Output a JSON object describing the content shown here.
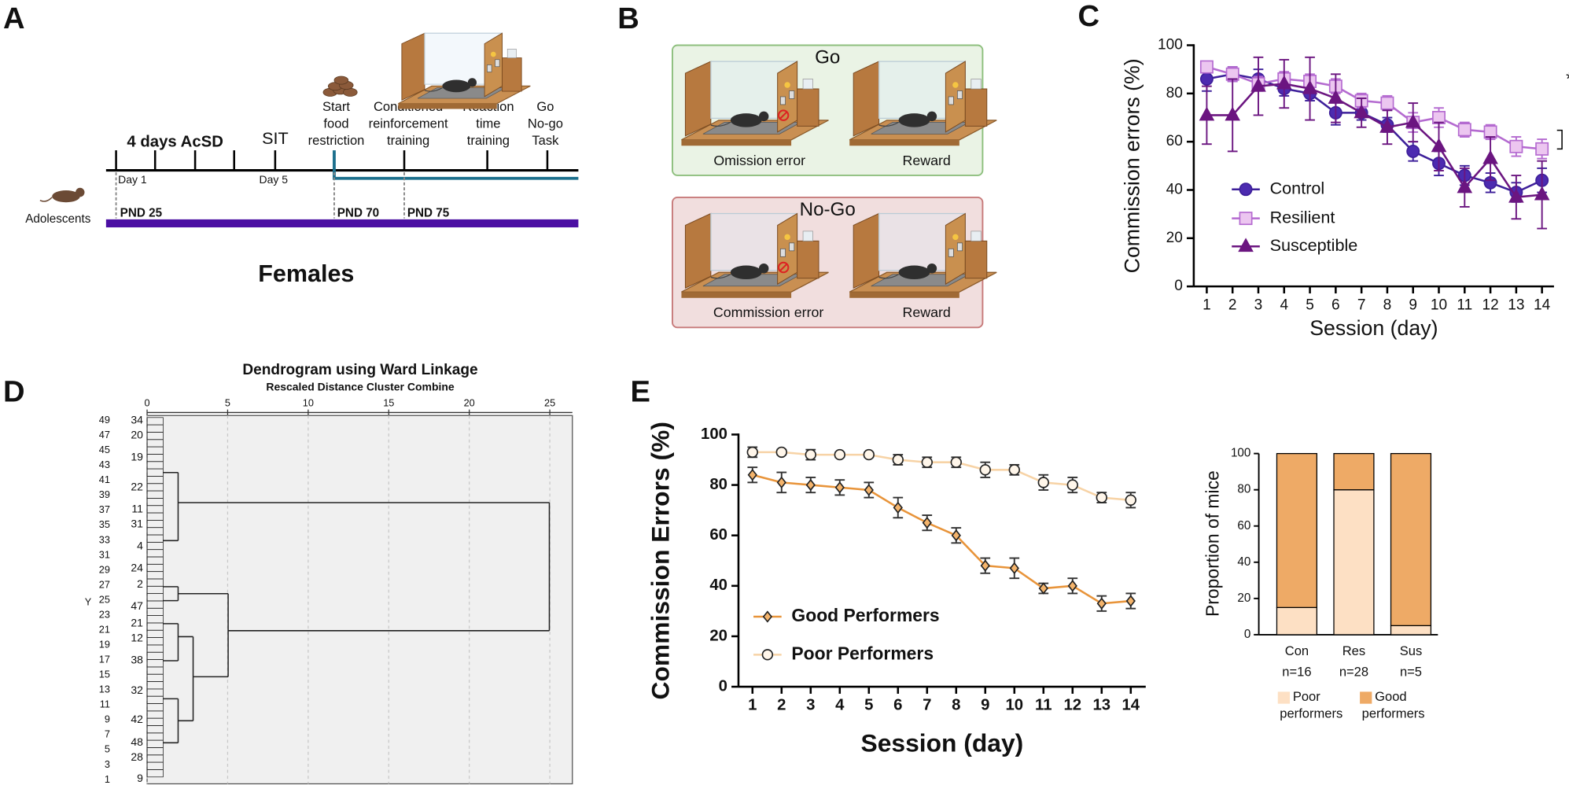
{
  "panel_labels": [
    "A",
    "B",
    "C",
    "D",
    "E"
  ],
  "timeline": {
    "phases": [
      "4 days AcSD",
      "SIT"
    ],
    "days": [
      "Day 1",
      "Day 5"
    ],
    "subject": "Adolescents",
    "stages": [
      [
        "Start",
        "food",
        "restriction"
      ],
      [
        "Conditioned",
        "reinforcement",
        "training"
      ],
      [
        "Reaction",
        "time",
        "training"
      ],
      [
        "Go",
        "No-go",
        "Task"
      ]
    ],
    "pnd": [
      "PND 25",
      "PND 70",
      "PND 75"
    ],
    "sex": "Females"
  },
  "task": {
    "panels": [
      {
        "title": "Go",
        "captions": [
          "Omission error",
          "Reward"
        ]
      },
      {
        "title": "No-Go",
        "captions": [
          "Commission error",
          "Reward"
        ]
      }
    ]
  },
  "chart_data": [
    {
      "type": "line",
      "xlabel": "Session (day)",
      "ylabel": "Commission errors (%)",
      "categories": [
        "1",
        "2",
        "3",
        "4",
        "5",
        "6",
        "7",
        "8",
        "9",
        "10",
        "11",
        "12",
        "13",
        "14"
      ],
      "ylim": [
        0,
        100
      ],
      "yticks": [
        0,
        20,
        40,
        60,
        80,
        100
      ],
      "annotation": "*",
      "series": [
        {
          "name": "Control",
          "color": "#3d1f9a",
          "fill": "#4c2bb0",
          "marker": "circle",
          "values": [
            86,
            88,
            86,
            82,
            80,
            72,
            72,
            67,
            56,
            51,
            46,
            43,
            39,
            44
          ],
          "errors": [
            5,
            3,
            4,
            3,
            3,
            5,
            3,
            3,
            4,
            5,
            4,
            4,
            4,
            5
          ]
        },
        {
          "name": "Resilient",
          "color": "#b46ad0",
          "fill": "#ecc6f0",
          "marker": "square",
          "values": [
            91,
            88,
            84,
            86,
            85,
            83,
            77,
            76,
            68,
            70,
            65,
            64,
            58,
            57
          ],
          "errors": [
            2,
            3,
            3,
            3,
            3,
            3,
            3,
            3,
            4,
            4,
            3,
            3,
            4,
            4
          ]
        },
        {
          "name": "Susceptible",
          "color": "#6b1580",
          "fill": "#6b1580",
          "marker": "triangle",
          "values": [
            71,
            71,
            83,
            84,
            82,
            78,
            72,
            66,
            68,
            58,
            41,
            53,
            37,
            38
          ],
          "errors": [
            12,
            15,
            12,
            10,
            13,
            10,
            6,
            7,
            8,
            10,
            8,
            9,
            9,
            14
          ]
        }
      ]
    },
    {
      "type": "dendrogram",
      "title": "Dendrogram using Ward Linkage",
      "subtitle": "Rescaled Distance Cluster Combine",
      "ylabel": "Y",
      "xlim": [
        0,
        26.4
      ],
      "xticks": [
        0,
        5,
        10,
        15,
        20,
        25
      ],
      "row_labels": [
        "49",
        "47",
        "45",
        "43",
        "41",
        "39",
        "37",
        "35",
        "33",
        "31",
        "29",
        "27",
        "25",
        "23",
        "21",
        "19",
        "17",
        "15",
        "13",
        "11",
        "9",
        "7",
        "5",
        "3",
        "1"
      ],
      "case_labels": [
        "34",
        "20",
        "19",
        "22",
        "11",
        "31",
        "4",
        "24",
        "2",
        "47",
        "21",
        "12",
        "38",
        "32",
        "42",
        "48",
        "28",
        "9"
      ]
    },
    {
      "type": "line",
      "xlabel": "Session (day)",
      "ylabel": "Commission Errors (%)",
      "categories": [
        "1",
        "2",
        "3",
        "4",
        "5",
        "6",
        "7",
        "8",
        "9",
        "10",
        "11",
        "12",
        "13",
        "14"
      ],
      "ylim": [
        0,
        100
      ],
      "yticks": [
        0,
        20,
        40,
        60,
        80,
        100
      ],
      "series": [
        {
          "name": "Good Performers",
          "color": "#e8943a",
          "fill": "#f4b46c",
          "marker": "diamond",
          "values": [
            84,
            81,
            80,
            79,
            78,
            71,
            65,
            60,
            48,
            47,
            39,
            40,
            33,
            34
          ],
          "errors": [
            3,
            4,
            3,
            3,
            3,
            4,
            3,
            3,
            3,
            4,
            2,
            3,
            3,
            3
          ]
        },
        {
          "name": "Poor Performers",
          "color": "#f7d3a6",
          "fill": "#fff6ea",
          "marker": "circle",
          "values": [
            93,
            93,
            92,
            92,
            92,
            90,
            89,
            89,
            86,
            86,
            81,
            80,
            75,
            74
          ],
          "errors": [
            2,
            1,
            2,
            1,
            1,
            2,
            2,
            2,
            3,
            2,
            3,
            3,
            2,
            3
          ]
        }
      ]
    },
    {
      "type": "stacked_bar",
      "ylabel": "Proportion of mice",
      "categories": [
        "Con",
        "Res",
        "Sus"
      ],
      "category_notes": [
        "n=16",
        "n=28",
        "n=5"
      ],
      "ylim": [
        0,
        100
      ],
      "yticks": [
        0,
        20,
        40,
        60,
        80,
        100
      ],
      "series": [
        {
          "name": "Poor performers",
          "color": "#fde0c4",
          "values": [
            15,
            80,
            5
          ]
        },
        {
          "name": "Good performers",
          "color": "#eeaa66",
          "values": [
            85,
            20,
            95
          ]
        }
      ]
    }
  ]
}
